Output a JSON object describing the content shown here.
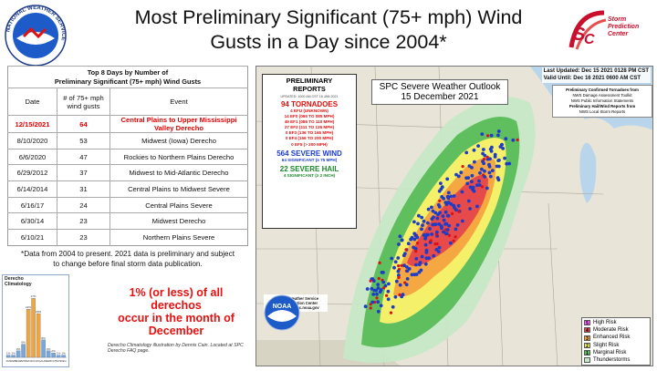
{
  "slide": {
    "title_line1": "Most Preliminary Significant (75+ mph) Wind",
    "title_line2": "Gusts in a Day since 2004*"
  },
  "logos": {
    "nws_ring_text": "NATIONAL WEATHER SERVICE",
    "spc_line1": "Storm",
    "spc_line2": "Prediction",
    "spc_line3": "Center"
  },
  "table": {
    "caption_line1": "Top 8 Days by Number of",
    "caption_line2": "Preliminary Significant (75+ mph) Wind Gusts",
    "headers": [
      "Date",
      "# of 75+ mph wind gusts",
      "Event"
    ],
    "rows": [
      {
        "date": "12/15/2021",
        "count": "64",
        "event": "Central Plains to Upper Mississippi Valley Derecho"
      },
      {
        "date": "8/10/2020",
        "count": "53",
        "event": "Midwest (Iowa) Derecho"
      },
      {
        "date": "6/6/2020",
        "count": "47",
        "event": "Rockies to Northern Plains Derecho"
      },
      {
        "date": "6/29/2012",
        "count": "37",
        "event": "Midwest to Mid-Atlantic Derecho"
      },
      {
        "date": "6/14/2014",
        "count": "31",
        "event": "Central Plains to Midwest Severe"
      },
      {
        "date": "6/16/17",
        "count": "24",
        "event": "Central Plains Severe"
      },
      {
        "date": "6/30/14",
        "count": "23",
        "event": "Midwest Derecho"
      },
      {
        "date": "6/10/21",
        "count": "23",
        "event": "Northern Plains Severe"
      }
    ]
  },
  "note": "*Data from 2004 to present. 2021 data is preliminary and subject to change before final storm data publication.",
  "climatology": {
    "title_line1": "Derecho",
    "title_line2": "Climatology",
    "months": [
      "JAN",
      "FEB",
      "MAR",
      "APR",
      "MAY",
      "JUN",
      "JUL",
      "AUG",
      "SEP",
      "OCT",
      "NOV",
      "DEC"
    ],
    "values": [
      1,
      1,
      3,
      6,
      22,
      27,
      20,
      8,
      3,
      2,
      1,
      1
    ],
    "value_labels": [
      "1%",
      "1%",
      "3%",
      "6%",
      "22%",
      "27%",
      "20%",
      "8%",
      "3%",
      "2%",
      "1%",
      "1%"
    ],
    "bar_color": "#7aa6d8",
    "peak_color": "#f2a63a"
  },
  "stat": {
    "line1": "1% (or less) of all",
    "line2": "derechos",
    "line3": "occur in the month of",
    "line4": "December"
  },
  "credit": "Derecho Climatology illustration by Dennis Cain. Located at SPC Derecho FAQ page.",
  "map": {
    "last_updated": "Last Updated: Dec 15 2021 0128 PM CST",
    "valid_until": "Valid Until: Dec 16 2021 0600 AM CST",
    "outlook_title_line1": "SPC Severe Weather Outlook",
    "outlook_title_line2": "15 December 2021",
    "reports": {
      "title_line1": "PRELIMINARY",
      "title_line2": "REPORTS",
      "updated": "UPDATED: 1000 AM CST 16 JAN 2021",
      "tornadoes": "94 TORNADOES",
      "tor_lines": [
        "4 EFU (UNKNOWN)",
        "14 EF0 (065 TO 085 MPH)",
        "49 EF1 (086 TO 110 MPH)",
        "27 EF2 (111 TO 135 MPH)",
        "0 EF3 (136 TO 165 MPH)",
        "0 EF4 (166 TO 200 MPH)",
        "0 EF5 (> 200 MPH)"
      ],
      "wind": "564 SEVERE WIND",
      "wind_sig": "64 SIGNIFICANT (≥ 75 MPH)",
      "hail": "22 SEVERE HAIL",
      "hail_sig": "4 SIGNIFICANT (≥ 2 INCH)"
    },
    "sources": {
      "line1": "Preliminary Confirmed Tornadoes from",
      "line2": "NWS Damage Assessment Toolkit",
      "line3": "NWS Public Information Statements",
      "line4": "Preliminary Hail/Wind Reports from",
      "line5": "NWS Local Storm Reports"
    },
    "noaa": {
      "label": "NOAA",
      "line1": "National Weather Service",
      "line2": "Storm Prediction Center",
      "line3": "https://www.spc.noaa.gov"
    },
    "legend": [
      {
        "num": "5",
        "label": "High Risk",
        "color": "#ff66ff"
      },
      {
        "num": "4",
        "label": "Moderate Risk",
        "color": "#e64a4a"
      },
      {
        "num": "3",
        "label": "Enhanced Risk",
        "color": "#f5a742"
      },
      {
        "num": "2",
        "label": "Slight Risk",
        "color": "#f5f06a"
      },
      {
        "num": "1",
        "label": "Marginal Risk",
        "color": "#5fbf5f"
      },
      {
        "num": "",
        "label": "Thunderstorms",
        "color": "#c6e8c6"
      }
    ]
  }
}
